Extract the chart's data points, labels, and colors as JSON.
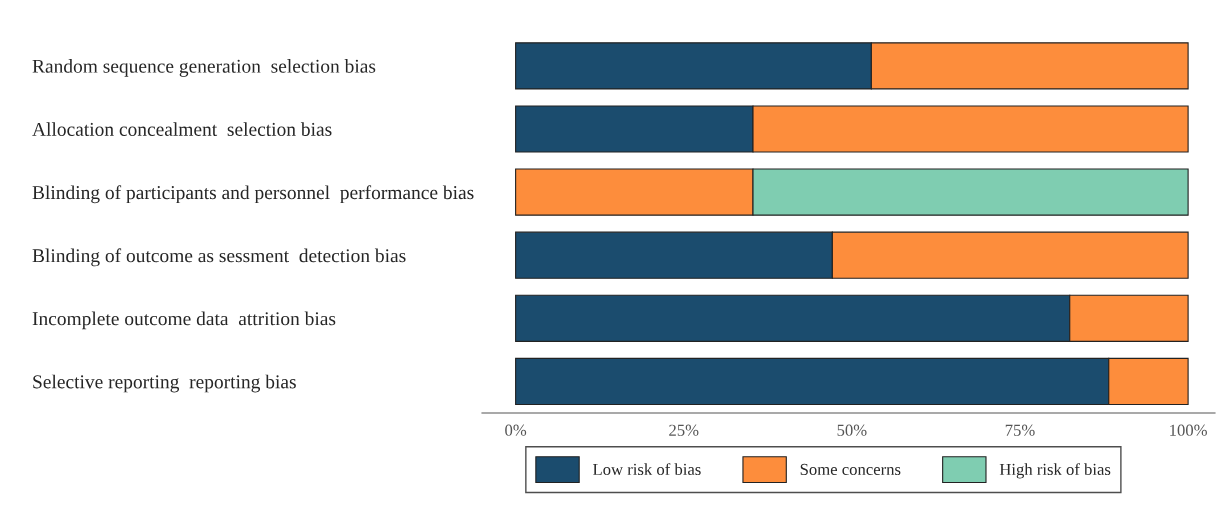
{
  "chart_data": {
    "type": "bar",
    "orientation": "horizontal",
    "stacked": true,
    "categories": [
      "Random sequence generation  selection bias",
      "Allocation concealment  selection bias",
      "Blinding of participants and personnel  performance bias",
      "Blinding of outcome as sessment  detection bias",
      "Incomplete outcome data  attrition bias",
      "Selective reporting  reporting bias"
    ],
    "series": [
      {
        "name": "Low risk of bias",
        "color": "#1b4c6e",
        "values": [
          52.9,
          35.3,
          0,
          47.1,
          82.4,
          88.2
        ]
      },
      {
        "name": "Some concerns",
        "color": "#fd8d3c",
        "values": [
          47.1,
          64.7,
          35.3,
          52.9,
          17.6,
          11.8
        ]
      },
      {
        "name": "High risk of bias",
        "color": "#7fcdb1",
        "values": [
          0,
          0,
          64.7,
          0,
          0,
          0
        ]
      }
    ],
    "xlim": [
      -5,
      104
    ],
    "xticks": [
      {
        "value": 0,
        "label": "0%"
      },
      {
        "value": 25,
        "label": "25%"
      },
      {
        "value": 50,
        "label": "50%"
      },
      {
        "value": 75,
        "label": "75%"
      },
      {
        "value": 100,
        "label": "100%"
      }
    ],
    "grid": false,
    "legend": "bottom"
  }
}
